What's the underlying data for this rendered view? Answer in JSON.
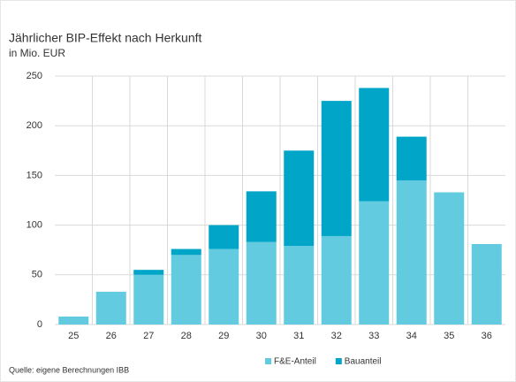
{
  "chart_data": {
    "type": "stacked-bar",
    "title": "Jährlicher BIP-Effekt nach Herkunft",
    "subtitle": "in Mio. EUR",
    "categories": [
      "25",
      "26",
      "27",
      "28",
      "29",
      "30",
      "31",
      "32",
      "33",
      "34",
      "35",
      "36"
    ],
    "series": [
      {
        "name": "F&E-Anteil",
        "color": "#62cbe0",
        "values": [
          8,
          33,
          50,
          70,
          76,
          83,
          79,
          89,
          124,
          145,
          133,
          81
        ]
      },
      {
        "name": "Bauanteil",
        "color": "#00a5c8",
        "values": [
          null,
          null,
          5,
          6,
          24,
          51,
          96,
          136,
          114,
          44,
          null,
          null
        ]
      }
    ],
    "ylim": [
      0,
      250
    ],
    "yticks": [
      0,
      50,
      100,
      150,
      200,
      250
    ],
    "grid": true,
    "legend": "bottom",
    "source": "Quelle: eigene Berechnungen IBB"
  }
}
